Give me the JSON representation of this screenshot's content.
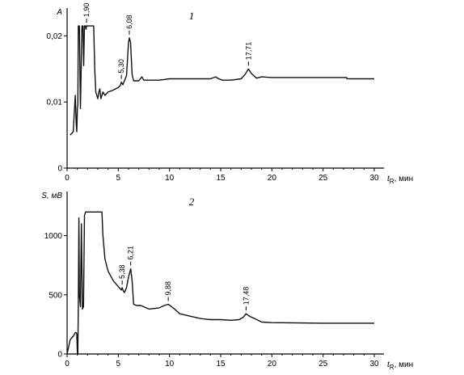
{
  "chart_data": [
    {
      "type": "line",
      "panel_label": "1",
      "ylabel": "A",
      "xlabel_var": "t",
      "xlabel_sub": "R",
      "xlabel_unit": ", мин",
      "xlim": [
        0,
        30
      ],
      "ylim": [
        0,
        0.022
      ],
      "x_ticks": [
        0,
        5,
        10,
        15,
        20,
        25,
        30
      ],
      "x_tick_labels": [
        "0",
        "5",
        "10",
        "15",
        "20",
        "25",
        "30"
      ],
      "y_ticks": [
        0,
        0.01,
        0.02
      ],
      "y_tick_labels": [
        "0",
        "0,01",
        "0,02"
      ],
      "peaks": [
        {
          "t": 1.9,
          "label": "1,90"
        },
        {
          "t": 5.3,
          "label": "5,30"
        },
        {
          "t": 6.08,
          "label": "6,08"
        },
        {
          "t": 17.71,
          "label": "17,71"
        }
      ],
      "series": [
        {
          "x": [
            0.3,
            0.6,
            0.8,
            0.9,
            0.95,
            1.0,
            1.05,
            1.1,
            1.2,
            1.3,
            1.45,
            1.55,
            1.62,
            1.7,
            1.75,
            1.8,
            1.85,
            1.9,
            1.95,
            2.0,
            2.05,
            2.1,
            2.15,
            2.2,
            2.25,
            2.6,
            2.7,
            2.8,
            3.0,
            3.1,
            3.2,
            3.3,
            3.4,
            3.5,
            3.7,
            4.0,
            4.5,
            5.0,
            5.2,
            5.3,
            5.45,
            5.6,
            5.8,
            6.0,
            6.08,
            6.2,
            6.35,
            6.5,
            7.0,
            7.3,
            7.5,
            8.0,
            9.0,
            10.0,
            12.0,
            14.0,
            14.5,
            14.8,
            15.2,
            16.0,
            17.0,
            17.4,
            17.71,
            18.0,
            18.5,
            19.0,
            20.0,
            25.0,
            27.3,
            27.35,
            28.0,
            30.0
          ],
          "y": [
            0.005,
            0.0055,
            0.011,
            0.0065,
            0.0055,
            0.009,
            0.0095,
            0.0215,
            0.0215,
            0.009,
            0.0215,
            0.0215,
            0.0155,
            0.0215,
            0.0215,
            0.0215,
            0.021,
            0.0215,
            0.0215,
            0.0215,
            0.0215,
            0.0215,
            0.0215,
            0.0215,
            0.0215,
            0.0215,
            0.015,
            0.0115,
            0.0105,
            0.0115,
            0.012,
            0.0105,
            0.011,
            0.0115,
            0.011,
            0.0115,
            0.0118,
            0.0122,
            0.0125,
            0.013,
            0.0126,
            0.0132,
            0.014,
            0.019,
            0.0197,
            0.019,
            0.0142,
            0.0132,
            0.0132,
            0.0138,
            0.0133,
            0.0133,
            0.0133,
            0.0135,
            0.0135,
            0.0135,
            0.0138,
            0.0135,
            0.0133,
            0.0133,
            0.0135,
            0.0142,
            0.015,
            0.0143,
            0.0136,
            0.0138,
            0.0137,
            0.0137,
            0.0137,
            0.0135,
            0.0135,
            0.0135
          ]
        }
      ]
    },
    {
      "type": "line",
      "panel_label": "2",
      "ylabel": "S, мВ",
      "xlabel_var": "t",
      "xlabel_sub": "R",
      "xlabel_unit": ", мин",
      "xlim": [
        0,
        30
      ],
      "ylim": [
        0,
        1250
      ],
      "x_ticks": [
        0,
        5,
        10,
        15,
        20,
        25,
        30
      ],
      "x_tick_labels": [
        "0",
        "5",
        "10",
        "15",
        "20",
        "25",
        "30"
      ],
      "y_ticks": [
        0,
        500,
        1000
      ],
      "y_tick_labels": [
        "0",
        "500",
        "1000"
      ],
      "peaks": [
        {
          "t": 5.38,
          "label": "5,38"
        },
        {
          "t": 6.21,
          "label": "6,21"
        },
        {
          "t": 9.88,
          "label": "9,88"
        },
        {
          "t": 17.48,
          "label": "17,48"
        }
      ],
      "series": [
        {
          "x": [
            0.0,
            0.3,
            0.6,
            0.8,
            0.9,
            0.95,
            1.0,
            1.05,
            1.1,
            1.15,
            1.2,
            1.3,
            1.4,
            1.5,
            1.6,
            1.7,
            1.8,
            1.9,
            2.0,
            3.4,
            3.5,
            3.7,
            4.0,
            4.5,
            5.0,
            5.3,
            5.38,
            5.5,
            5.6,
            5.8,
            6.0,
            6.21,
            6.35,
            6.5,
            6.8,
            7.2,
            8.0,
            9.0,
            9.5,
            9.88,
            10.2,
            10.5,
            11.0,
            12.0,
            13.0,
            14.0,
            15.0,
            16.0,
            16.8,
            17.2,
            17.48,
            17.8,
            18.3,
            19.0,
            20.0,
            25.0,
            30.0
          ],
          "y": [
            0,
            120,
            150,
            180,
            180,
            170,
            10,
            0,
            420,
            1150,
            500,
            400,
            1100,
            380,
            400,
            1170,
            1200,
            1200,
            1200,
            1200,
            1000,
            800,
            700,
            620,
            570,
            540,
            560,
            530,
            520,
            560,
            650,
            720,
            620,
            420,
            410,
            410,
            380,
            390,
            410,
            420,
            400,
            380,
            340,
            320,
            300,
            290,
            290,
            285,
            290,
            310,
            340,
            320,
            300,
            270,
            265,
            260,
            260
          ]
        }
      ]
    }
  ]
}
